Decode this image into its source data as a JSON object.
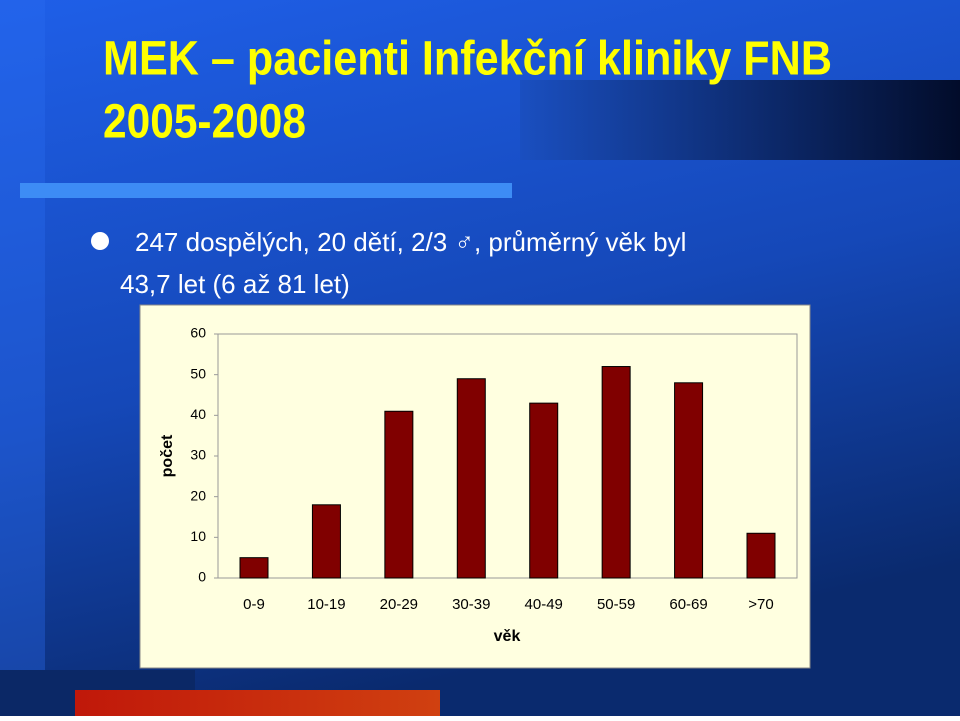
{
  "slide": {
    "title": [
      "MEK – pacienti Infekční kliniky FNB",
      "2005-2008"
    ],
    "bullet": [
      "247 dospělých, 20 dětí, 2/3 ♂, průměrný věk byl",
      "43,7 let (6 až 81 let)"
    ]
  },
  "chart_data": {
    "type": "bar",
    "x_label": "věk",
    "y_label": "počet",
    "categories": [
      "0-9",
      "10-19",
      "20-29",
      "30-39",
      "40-49",
      "50-59",
      "60-69",
      ">70"
    ],
    "values": [
      5,
      18,
      41,
      49,
      43,
      52,
      48,
      11
    ],
    "color": "#800000",
    "ylim": [
      0,
      60
    ],
    "yticks": [
      0,
      10,
      20,
      30,
      40,
      50,
      60
    ],
    "grid": false
  }
}
